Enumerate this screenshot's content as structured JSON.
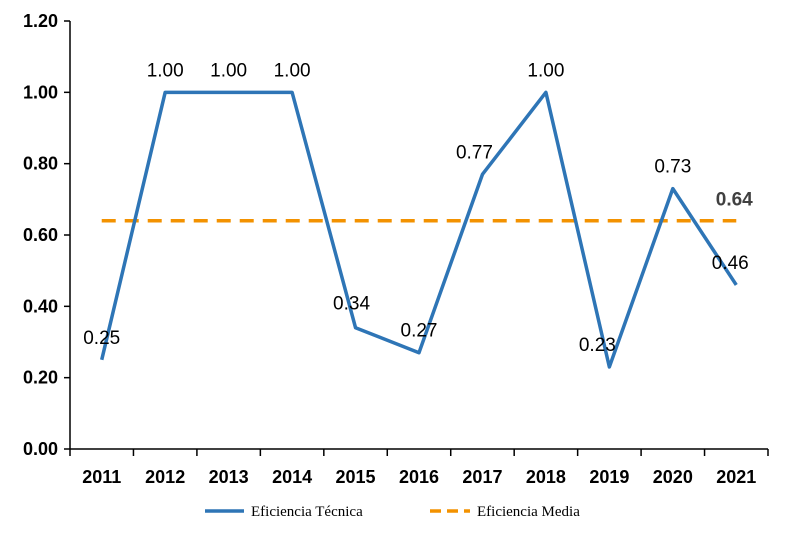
{
  "chart_data": {
    "type": "line",
    "categories": [
      "2011",
      "2012",
      "2013",
      "2014",
      "2015",
      "2016",
      "2017",
      "2018",
      "2019",
      "2020",
      "2021"
    ],
    "series": [
      {
        "name": "Eficiencia Técnica",
        "values": [
          0.25,
          1.0,
          1.0,
          1.0,
          0.34,
          0.27,
          0.77,
          1.0,
          0.23,
          0.73,
          0.46
        ],
        "labels": [
          "0.25",
          "1.00",
          "1.00",
          "1.00",
          "0.34",
          "0.27",
          "0.77",
          "1.00",
          "0.23",
          "0.73",
          "0.46"
        ],
        "color": "#2e75b6",
        "style": "solid"
      },
      {
        "name": "Eficiencia Media",
        "values": [
          0.64,
          0.64,
          0.64,
          0.64,
          0.64,
          0.64,
          0.64,
          0.64,
          0.64,
          0.64,
          0.64
        ],
        "end_label": "0.64",
        "color": "#f39200",
        "style": "dashed"
      }
    ],
    "yticks": [
      "0.00",
      "0.20",
      "0.40",
      "0.60",
      "0.80",
      "1.00",
      "1.20"
    ],
    "ylim": [
      0,
      1.2
    ],
    "grid": false,
    "legend_position": "bottom"
  }
}
